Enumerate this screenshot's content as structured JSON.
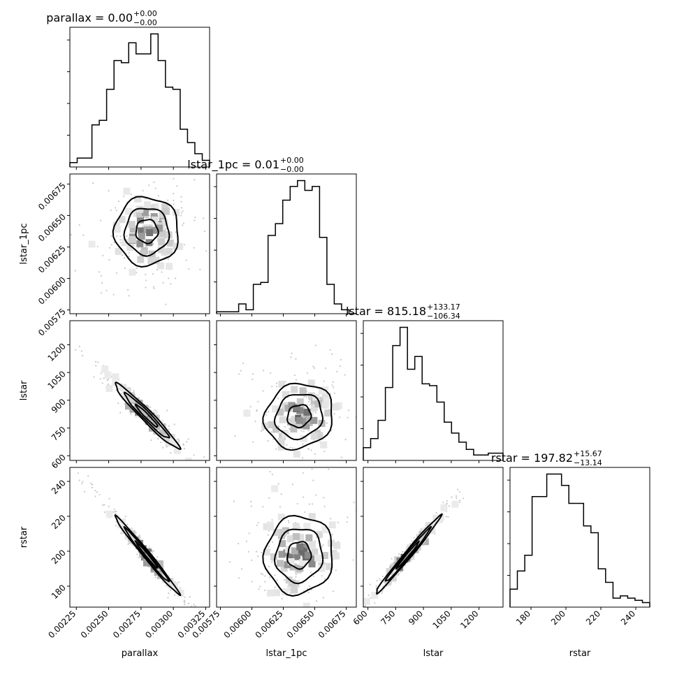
{
  "chart_data": {
    "type": "corner",
    "parameters": [
      "parallax",
      "lstar_1pc",
      "lstar",
      "rstar"
    ],
    "titles": [
      {
        "label": "parallax = 0.00",
        "sup": "+0.00",
        "sub": "−0.00"
      },
      {
        "label": "lstar_1pc = 0.01",
        "sup": "+0.00",
        "sub": "−0.00"
      },
      {
        "label": "lstar = 815.18",
        "sup": "+133.17",
        "sub": "−106.34"
      },
      {
        "label": "rstar = 197.82",
        "sup": "+15.67",
        "sub": "−13.14"
      }
    ],
    "axes": [
      {
        "name": "parallax",
        "range": [
          0.0022,
          0.00328
        ],
        "ticks": [
          0.00225,
          0.0025,
          0.00275,
          0.003,
          0.00325
        ],
        "tick_labels": [
          "0.00225",
          "0.00250",
          "0.00275",
          "0.00300",
          "0.00325"
        ]
      },
      {
        "name": "lstar_1pc",
        "range": [
          0.00572,
          0.00683
        ],
        "ticks": [
          0.00575,
          0.006,
          0.00625,
          0.0065,
          0.00675
        ],
        "tick_labels": [
          "0.00575",
          "0.00600",
          "0.00625",
          "0.00650",
          "0.00675"
        ]
      },
      {
        "name": "lstar",
        "range": [
          575,
          1330
        ],
        "ticks": [
          600,
          750,
          900,
          1050,
          1200
        ],
        "tick_labels": [
          "600",
          "750",
          "900",
          "1050",
          "1200"
        ]
      },
      {
        "name": "rstar",
        "range": [
          168,
          248
        ],
        "ticks": [
          180,
          200,
          220,
          240
        ],
        "tick_labels": [
          "180",
          "200",
          "220",
          "240"
        ]
      }
    ],
    "histograms": [
      {
        "param": "parallax",
        "counts": [
          2,
          4,
          4,
          19,
          21,
          35,
          48,
          47,
          56,
          51,
          51,
          60,
          48,
          36,
          35,
          17,
          11,
          6,
          3
        ]
      },
      {
        "param": "lstar_1pc",
        "counts": [
          1,
          1,
          1,
          5,
          2,
          15,
          16,
          40,
          46,
          58,
          65,
          68,
          63,
          65,
          39,
          15,
          5,
          2,
          0
        ]
      },
      {
        "param": "lstar",
        "counts": [
          7,
          12,
          22,
          40,
          63,
          73,
          50,
          57,
          42,
          41,
          32,
          21,
          15,
          10,
          6,
          3,
          3,
          4,
          4
        ]
      },
      {
        "param": "rstar",
        "counts": [
          8,
          16,
          23,
          49,
          49,
          59,
          59,
          54,
          46,
          46,
          36,
          33,
          17,
          11,
          4,
          5,
          4,
          3,
          2
        ]
      }
    ]
  }
}
